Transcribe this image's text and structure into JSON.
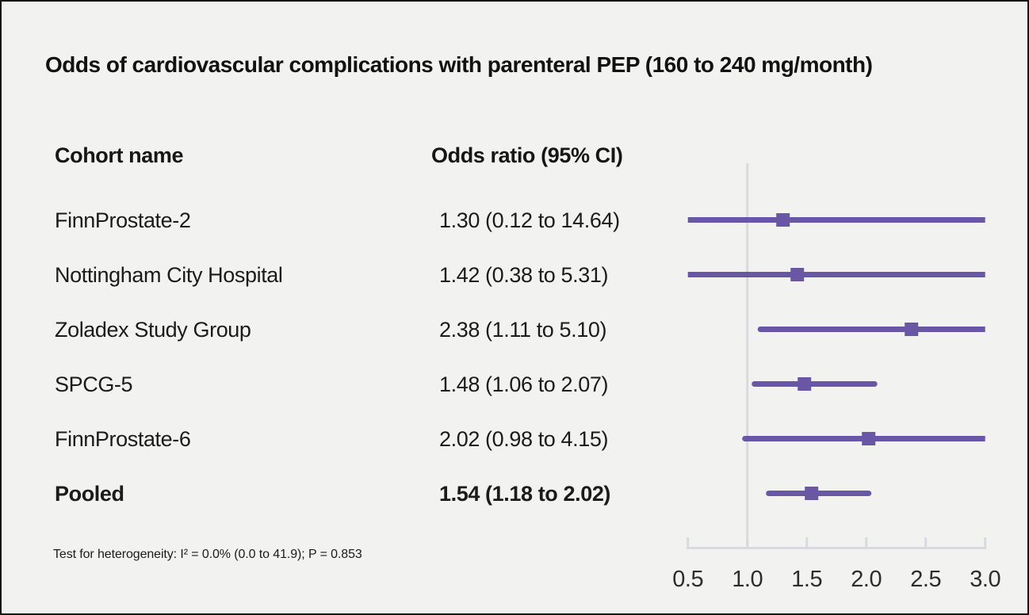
{
  "page": {
    "title": "Odds of cardiovascular complications with parenteral PEP (160 to 240 mg/month)",
    "footnote": "Test for heterogeneity: I² = 0.0% (0.0 to 41.9); P = 0.853"
  },
  "table": {
    "headers": {
      "cohort": "Cohort name",
      "odds_ratio": "Odds ratio (95% CI)"
    }
  },
  "chart_data": {
    "type": "forest",
    "title": "Odds of cardiovascular complications with parenteral PEP (160 to 240 mg/month)",
    "x_axis": {
      "scale": "linear",
      "range": [
        0.5,
        3.0
      ],
      "ticks": [
        0.5,
        1.0,
        1.5,
        2.0,
        2.5,
        3.0
      ],
      "tick_labels": [
        "0.5",
        "1.0",
        "1.5",
        "2.0",
        "2.5",
        "3.0"
      ],
      "reference_line": 1.0
    },
    "studies": [
      {
        "label": "FinnProstate-2",
        "or": 1.3,
        "ci_lower": 0.12,
        "ci_upper": 14.64,
        "display": "1.30 (0.12 to 14.64)",
        "pooled": false
      },
      {
        "label": "Nottingham City Hospital",
        "or": 1.42,
        "ci_lower": 0.38,
        "ci_upper": 5.31,
        "display": "1.42 (0.38 to 5.31)",
        "pooled": false
      },
      {
        "label": "Zoladex Study Group",
        "or": 2.38,
        "ci_lower": 1.11,
        "ci_upper": 5.1,
        "display": "2.38 (1.11 to 5.10)",
        "pooled": false
      },
      {
        "label": "SPCG-5",
        "or": 1.48,
        "ci_lower": 1.06,
        "ci_upper": 2.07,
        "display": "1.48 (1.06 to 2.07)",
        "pooled": false
      },
      {
        "label": "FinnProstate-6",
        "or": 2.02,
        "ci_lower": 0.98,
        "ci_upper": 4.15,
        "display": "2.02 (0.98 to 4.15)",
        "pooled": false
      },
      {
        "label": "Pooled",
        "or": 1.54,
        "ci_lower": 1.18,
        "ci_upper": 2.02,
        "display": "1.54 (1.18 to 2.02)",
        "pooled": true
      }
    ],
    "heterogeneity": "Test for heterogeneity: I² = 0.0% (0.0 to 41.9); P = 0.853",
    "colors": {
      "marker": "#6957a6",
      "axis": "#d7dbe1",
      "background": "#f2f2f0"
    },
    "legend": "none",
    "grid": false
  }
}
